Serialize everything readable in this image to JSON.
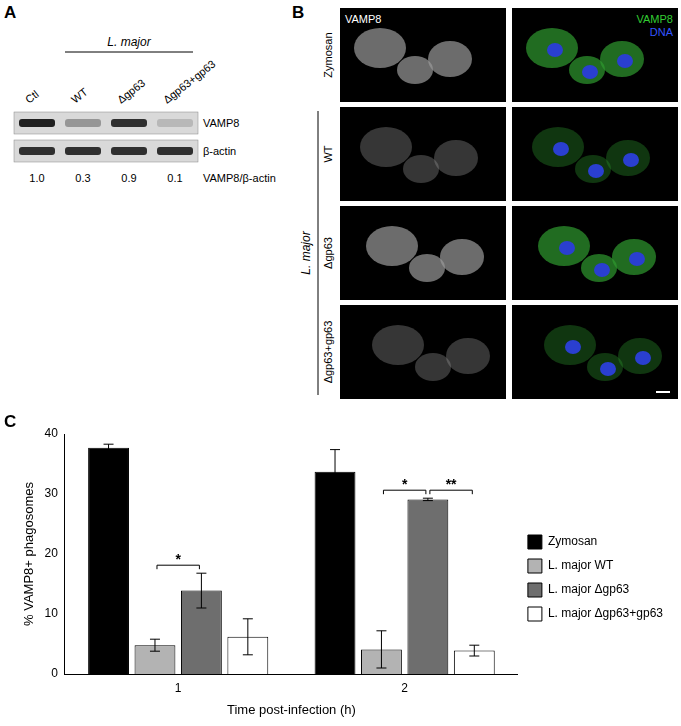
{
  "panel_labels": [
    "A",
    "B",
    "C"
  ],
  "blot": {
    "group_label": "L. major",
    "lanes": [
      "Ctl",
      "WT",
      "Δgp63",
      "Δgp63+gp63"
    ],
    "group_lanes": [
      "WT",
      "Δgp63",
      "Δgp63+gp63"
    ],
    "rows": [
      "VAMP8",
      "β-actin"
    ],
    "ratio_label": "VAMP8/β-actin",
    "ratios": [
      {
        "value": 1.0,
        "label": "1.0"
      },
      {
        "value": 0.3,
        "label": "0.3"
      },
      {
        "value": 0.9,
        "label": "0.9"
      },
      {
        "value": 0.1,
        "label": "0.1"
      }
    ]
  },
  "micrographs": {
    "channel_label": "VAMP8",
    "merge_labels": [
      {
        "text": "VAMP8",
        "color": "#33cc33"
      },
      {
        "text": "DNA",
        "color": "#3355ff"
      }
    ],
    "group_label": "L. major",
    "rows": [
      "Zymosan",
      "WT",
      "Δgp63",
      "Δgp63+gp63"
    ],
    "group_rows": [
      "WT",
      "Δgp63",
      "Δgp63+gp63"
    ]
  },
  "chart_data": {
    "type": "bar",
    "categories": [
      "1",
      "2"
    ],
    "x_label": "Time post-infection (h)",
    "y_label": "% VAMP8+ phagosomes",
    "ylim": [
      0,
      40
    ],
    "yticks": [
      0,
      10,
      20,
      30,
      40
    ],
    "grid": false,
    "legend": "right",
    "series": [
      {
        "name": "Zymosan",
        "color": "#000000",
        "values": [
          37.7,
          33.7
        ],
        "errors": [
          0.6,
          3.7
        ]
      },
      {
        "name": "L. major WT",
        "color": "#b3b3b3",
        "values": [
          4.8,
          4.1
        ],
        "errors": [
          1.0,
          3.1
        ]
      },
      {
        "name": "L. major Δgp63",
        "color": "#6e6e6e",
        "values": [
          13.9,
          29.1
        ],
        "errors": [
          2.9,
          0.2
        ]
      },
      {
        "name": "L. major Δgp63+gp63",
        "color": "#ffffff",
        "values": [
          6.2,
          3.9
        ],
        "errors": [
          3.0,
          0.9
        ]
      }
    ],
    "annotations": [
      {
        "category": "1",
        "from": "L. major WT",
        "to": "L. major Δgp63",
        "label": "*"
      },
      {
        "category": "2",
        "from": "L. major WT",
        "to": "L. major Δgp63",
        "label": "*"
      },
      {
        "category": "2",
        "from": "L. major Δgp63",
        "to": "L. major Δgp63+gp63",
        "label": "**"
      }
    ]
  }
}
